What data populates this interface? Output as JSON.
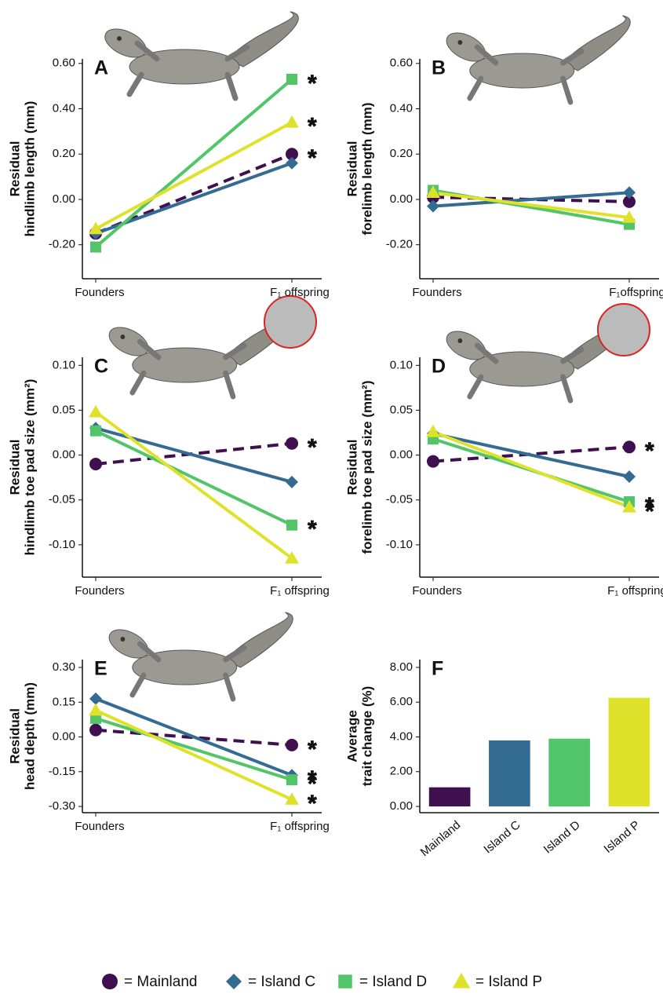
{
  "chart_data": [
    {
      "type": "line",
      "label": "A",
      "ylabel": [
        "Residual",
        "hindlimb length (mm)"
      ],
      "categories": [
        "Founders",
        "F₁ offspring"
      ],
      "ylim": [
        -0.35,
        0.62
      ],
      "yticks": [
        {
          "value": -0.2,
          "label": "-0.20"
        },
        {
          "value": 0,
          "label": "0.00"
        },
        {
          "value": 0.2,
          "label": "0.20"
        },
        {
          "value": 0.4,
          "label": "0.40"
        },
        {
          "value": 0.6,
          "label": "0.60"
        }
      ],
      "series": [
        {
          "marker": "circle",
          "color": "#3f0f4f",
          "dashed": true,
          "values": [
            -0.15,
            0.2
          ]
        },
        {
          "marker": "diamond",
          "color": "#336b93",
          "values": [
            -0.15,
            0.16
          ]
        },
        {
          "marker": "square",
          "color": "#52c569",
          "values": [
            -0.21,
            0.53
          ]
        },
        {
          "marker": "triangle",
          "color": "#dfe22a",
          "values": [
            -0.13,
            0.34
          ]
        }
      ],
      "annotations": [
        {
          "text": "*",
          "series": 2
        },
        {
          "text": "*",
          "series": 3
        },
        {
          "text": "*",
          "series": 0
        }
      ]
    },
    {
      "type": "line",
      "label": "B",
      "ylabel": [
        "Residual",
        "forelimb length (mm)"
      ],
      "categories": [
        "Founders",
        "F₁offspring"
      ],
      "ylim": [
        -0.35,
        0.62
      ],
      "yticks": [
        {
          "value": -0.2,
          "label": "-0.20"
        },
        {
          "value": 0,
          "label": "0.00"
        },
        {
          "value": 0.2,
          "label": "0.20"
        },
        {
          "value": 0.4,
          "label": "0.40"
        },
        {
          "value": 0.6,
          "label": "0.60"
        }
      ],
      "series": [
        {
          "marker": "circle",
          "color": "#3f0f4f",
          "dashed": true,
          "values": [
            0.01,
            -0.01
          ]
        },
        {
          "marker": "diamond",
          "color": "#336b93",
          "values": [
            -0.03,
            0.03
          ]
        },
        {
          "marker": "square",
          "color": "#52c569",
          "values": [
            0.04,
            -0.11
          ]
        },
        {
          "marker": "triangle",
          "color": "#dfe22a",
          "values": [
            0.03,
            -0.08
          ]
        }
      ]
    },
    {
      "type": "line",
      "label": "C",
      "ylabel": [
        "Residual",
        "hindlimb toe pad size (mm²)"
      ],
      "categories": [
        "Founders",
        "F₁ offspring"
      ],
      "ylim": [
        -0.136,
        0.109
      ],
      "yticks": [
        {
          "value": -0.1,
          "label": "-0.10"
        },
        {
          "value": -0.05,
          "label": "-0.05"
        },
        {
          "value": 0,
          "label": "0.00"
        },
        {
          "value": 0.05,
          "label": "0.05"
        },
        {
          "value": 0.1,
          "label": "0.10"
        }
      ],
      "series": [
        {
          "marker": "circle",
          "color": "#3f0f4f",
          "dashed": true,
          "values": [
            -0.01,
            0.013
          ]
        },
        {
          "marker": "diamond",
          "color": "#336b93",
          "values": [
            0.03,
            -0.03
          ]
        },
        {
          "marker": "square",
          "color": "#52c569",
          "values": [
            0.027,
            -0.078
          ]
        },
        {
          "marker": "triangle",
          "color": "#dfe22a",
          "values": [
            0.048,
            -0.115
          ]
        }
      ],
      "annotations": [
        {
          "text": "*",
          "series": 0
        },
        {
          "text": "*",
          "series": 2
        }
      ]
    },
    {
      "type": "line",
      "label": "D",
      "ylabel": [
        "Residual",
        "forelimb toe pad size (mm²)"
      ],
      "categories": [
        "Founders",
        "F₁ offspring"
      ],
      "ylim": [
        -0.136,
        0.109
      ],
      "yticks": [
        {
          "value": -0.1,
          "label": "-0.10"
        },
        {
          "value": -0.05,
          "label": "-0.05"
        },
        {
          "value": 0,
          "label": "0.00"
        },
        {
          "value": 0.05,
          "label": "0.05"
        },
        {
          "value": 0.1,
          "label": "0.10"
        }
      ],
      "series": [
        {
          "marker": "circle",
          "color": "#3f0f4f",
          "dashed": true,
          "values": [
            -0.007,
            0.009
          ]
        },
        {
          "marker": "diamond",
          "color": "#336b93",
          "values": [
            0.024,
            -0.024
          ]
        },
        {
          "marker": "square",
          "color": "#52c569",
          "values": [
            0.018,
            -0.052
          ]
        },
        {
          "marker": "triangle",
          "color": "#dfe22a",
          "values": [
            0.026,
            -0.058
          ]
        }
      ],
      "annotations": [
        {
          "text": "*",
          "series": 0
        },
        {
          "text": "*",
          "series": 2
        },
        {
          "text": "*",
          "series": 3
        }
      ]
    },
    {
      "type": "line",
      "label": "E",
      "ylabel": [
        "Residual",
        "head depth (mm)"
      ],
      "categories": [
        "Founders",
        "F₁ offspring"
      ],
      "ylim": [
        -0.327,
        0.334
      ],
      "yticks": [
        {
          "value": -0.3,
          "label": "-0.30"
        },
        {
          "value": -0.15,
          "label": "-0.15"
        },
        {
          "value": 0,
          "label": "0.00"
        },
        {
          "value": 0.15,
          "label": "0.15"
        },
        {
          "value": 0.3,
          "label": "0.30"
        }
      ],
      "series": [
        {
          "marker": "circle",
          "color": "#3f0f4f",
          "dashed": true,
          "values": [
            0.03,
            -0.035
          ]
        },
        {
          "marker": "diamond",
          "color": "#336b93",
          "values": [
            0.165,
            -0.165
          ]
        },
        {
          "marker": "square",
          "color": "#52c569",
          "values": [
            0.08,
            -0.185
          ]
        },
        {
          "marker": "triangle",
          "color": "#dfe22a",
          "values": [
            0.115,
            -0.27
          ]
        }
      ],
      "annotations": [
        {
          "text": "*",
          "series": 0
        },
        {
          "text": "*",
          "series": 1
        },
        {
          "text": "*",
          "series": 2
        },
        {
          "text": "*",
          "series": 3
        }
      ]
    },
    {
      "type": "bar",
      "label": "F",
      "ylabel": [
        "Average",
        "trait change (%)"
      ],
      "categories": [
        "Mainland",
        "Island C",
        "Island D",
        "Island P"
      ],
      "values": [
        1.1,
        3.8,
        3.9,
        6.25
      ],
      "colors": [
        "#3f0f4f",
        "#336b93",
        "#52c569",
        "#dfe22a"
      ],
      "ylim": [
        -0.36,
        8.45
      ],
      "yticks": [
        {
          "value": 0,
          "label": "0.00"
        },
        {
          "value": 2,
          "label": "2.00"
        },
        {
          "value": 4,
          "label": "4.00"
        },
        {
          "value": 6,
          "label": "6.00"
        },
        {
          "value": 8,
          "label": "8.00"
        }
      ]
    }
  ],
  "legend": [
    {
      "label": "= Mainland",
      "marker": "circle",
      "color": "#3f0f4f"
    },
    {
      "label": "= Island C",
      "marker": "diamond",
      "color": "#336b93"
    },
    {
      "label": "= Island D",
      "marker": "square",
      "color": "#52c569"
    },
    {
      "label": "= Island P",
      "marker": "triangle",
      "color": "#dfe22a"
    }
  ]
}
